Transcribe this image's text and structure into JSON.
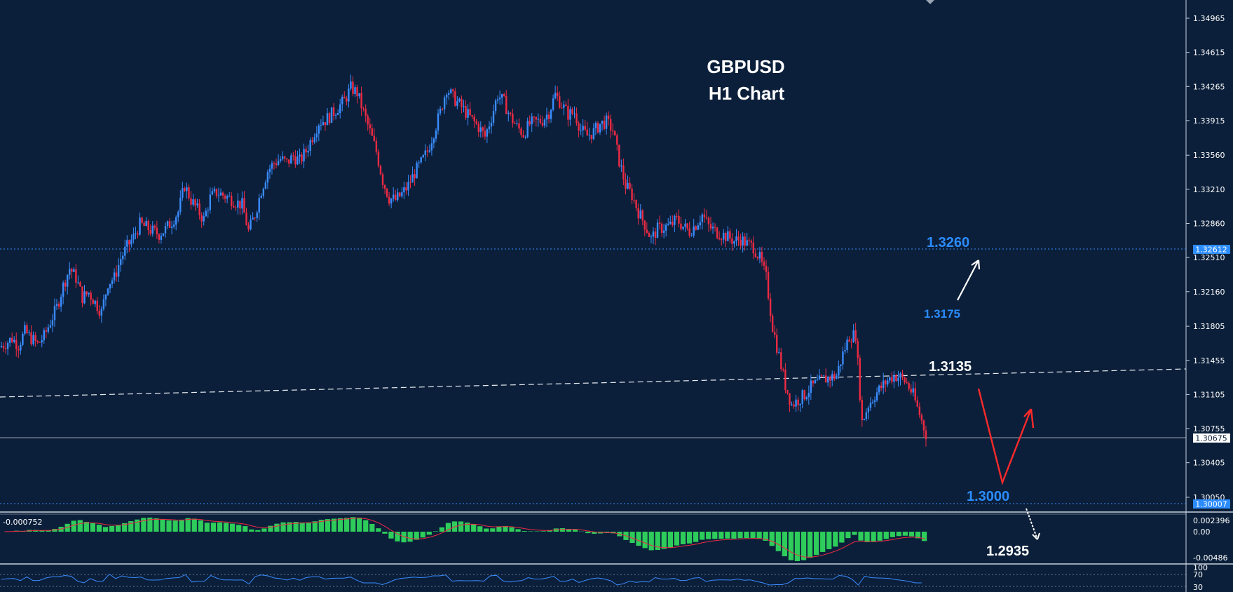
{
  "chart_data": {
    "type": "candlestick",
    "symbol": "GBPUSD",
    "timeframe": "H1 Chart",
    "ylim": [
      1.2985,
      1.351
    ],
    "y_ticks": [
      "1.34965",
      "1.34615",
      "1.34265",
      "1.33915",
      "1.33560",
      "1.33210",
      "1.32860",
      "1.32510",
      "1.32160",
      "1.31805",
      "1.31455",
      "1.31105",
      "1.30755",
      "1.30405",
      "1.30050"
    ],
    "price_labels": {
      "level_1": "1.32612",
      "current": "1.30675",
      "level_2": "1.30007"
    },
    "close_series": [
      1.3159,
      1.3163,
      1.3168,
      1.3161,
      1.3175,
      1.3168,
      1.3162,
      1.317,
      1.3185,
      1.32,
      1.3222,
      1.324,
      1.323,
      1.321,
      1.3215,
      1.3205,
      1.3195,
      1.3225,
      1.323,
      1.325,
      1.3262,
      1.3272,
      1.3285,
      1.3282,
      1.3278,
      1.3275,
      1.328,
      1.3288,
      1.3298,
      1.3325,
      1.331,
      1.33,
      1.329,
      1.3312,
      1.3318,
      1.3315,
      1.3312,
      1.3308,
      1.3305,
      1.3278,
      1.3295,
      1.332,
      1.334,
      1.3348,
      1.3352,
      1.3348,
      1.3355,
      1.335,
      1.336,
      1.3375,
      1.339,
      1.3392,
      1.3398,
      1.3405,
      1.3412,
      1.3425,
      1.342,
      1.34,
      1.338,
      1.336,
      1.333,
      1.3312,
      1.331,
      1.3316,
      1.3325,
      1.3338,
      1.3348,
      1.336,
      1.338,
      1.34,
      1.3425,
      1.3415,
      1.3408,
      1.34,
      1.3392,
      1.3385,
      1.3375,
      1.3395,
      1.3418,
      1.341,
      1.3395,
      1.3385,
      1.3378,
      1.3388,
      1.339,
      1.3392,
      1.34,
      1.3418,
      1.3408,
      1.3398,
      1.34,
      1.3382,
      1.3376,
      1.338,
      1.3388,
      1.339,
      1.3382,
      1.335,
      1.3325,
      1.3315,
      1.3298,
      1.3285,
      1.327,
      1.328,
      1.3282,
      1.3284,
      1.329,
      1.3283,
      1.3278,
      1.3285,
      1.3295,
      1.3283,
      1.3278,
      1.3275,
      1.3272,
      1.3268,
      1.327,
      1.3265,
      1.3262,
      1.325,
      1.323,
      1.318,
      1.315,
      1.312,
      1.31,
      1.3105,
      1.311,
      1.3118,
      1.3122,
      1.3126,
      1.3128,
      1.313,
      1.3152,
      1.317,
      1.3172,
      1.3082,
      1.31,
      1.311,
      1.3118,
      1.3125,
      1.313,
      1.3128,
      1.3122,
      1.311,
      1.309,
      1.307
    ],
    "horizontal_levels": [
      "1.3260",
      "1.3000"
    ],
    "annotations": [
      "1.3260",
      "1.3175",
      "1.3135",
      "1.3000",
      "1.2935"
    ],
    "macd": {
      "label": "-0.000752",
      "ticks": [
        "0.002396",
        "0.00",
        "-0.00486"
      ]
    },
    "rsi": {
      "ticks": [
        "100",
        "70",
        "30"
      ]
    }
  },
  "colors": {
    "background": "#0b1f3a",
    "bull": "#3a8cff",
    "bear": "#ef2a43",
    "hist": "#2ecc5a",
    "level": "#3a8cff",
    "annotation_blue": "#2b8cff",
    "arrow_red": "#ff2a2a",
    "white": "#ffffff"
  }
}
